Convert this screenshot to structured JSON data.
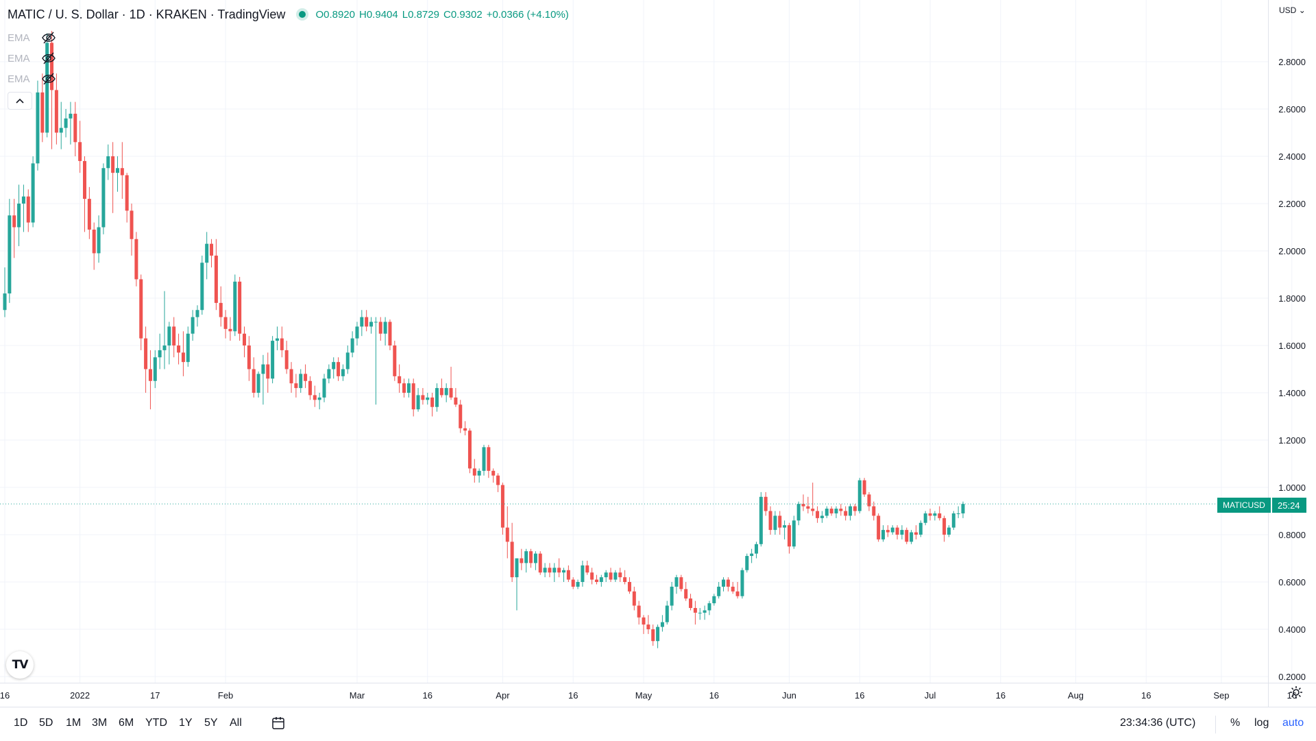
{
  "header": {
    "title": "MATIC / U. S. Dollar · 1D · KRAKEN · TradingView",
    "ohlc": {
      "o_label": "O",
      "o": "0.8920",
      "h_label": "H",
      "h": "0.9404",
      "l_label": "L",
      "l": "0.8729",
      "c_label": "C",
      "c": "0.9302",
      "change": "+0.0366 (+4.10%)"
    }
  },
  "indicators": [
    {
      "label": "EMA",
      "icon": "eye-crossed-icon"
    },
    {
      "label": "EMA",
      "icon": "eye-crossed-icon"
    },
    {
      "label": "EMA",
      "icon": "eye-crossed-icon"
    }
  ],
  "collapse_icon": "chevron-up-icon",
  "logo_text": "TV",
  "price_axis": {
    "currency": "USD",
    "ticks": [
      "2.8000",
      "2.6000",
      "2.4000",
      "2.2000",
      "2.0000",
      "1.8000",
      "1.6000",
      "1.4000",
      "1.2000",
      "1.0000",
      "0.8000",
      "0.6000",
      "0.4000",
      "0.2000"
    ]
  },
  "last_price_label": {
    "symbol": "MATICUSD",
    "countdown": "25:24"
  },
  "time_axis": {
    "labels": [
      "16",
      "2022",
      "17",
      "Feb",
      "Mar",
      "16",
      "Apr",
      "16",
      "May",
      "16",
      "Jun",
      "16",
      "Jul",
      "16",
      "Aug",
      "16",
      "Sep",
      "16"
    ]
  },
  "toolbar": {
    "timeframes": [
      "1D",
      "5D",
      "1M",
      "3M",
      "6M",
      "YTD",
      "1Y",
      "5Y",
      "All"
    ],
    "clock": "23:34:36 (UTC)",
    "percent": "%",
    "log": "log",
    "auto": "auto"
  },
  "colors": {
    "up": "#26a69a",
    "down": "#ef5350",
    "grid": "#f0f3fa",
    "axis_text": "#131722"
  },
  "chart_data": {
    "type": "candlestick",
    "title": "MATIC / U. S. Dollar · 1D · KRAKEN",
    "ylim": [
      0.2,
      2.95
    ],
    "first_date": "2021-12-16",
    "last_date": "2022-09-12",
    "grid": true,
    "candles": [
      [
        1.75,
        1.93,
        1.72,
        1.82
      ],
      [
        1.82,
        2.22,
        1.78,
        2.15
      ],
      [
        2.15,
        2.22,
        1.97,
        2.1
      ],
      [
        2.1,
        2.28,
        2.02,
        2.2
      ],
      [
        2.2,
        2.28,
        2.08,
        2.23
      ],
      [
        2.23,
        2.26,
        2.08,
        2.12
      ],
      [
        2.12,
        2.4,
        2.1,
        2.37
      ],
      [
        2.37,
        2.72,
        2.34,
        2.67
      ],
      [
        2.67,
        2.75,
        2.46,
        2.5
      ],
      [
        2.5,
        2.92,
        2.48,
        2.88
      ],
      [
        2.88,
        2.93,
        2.43,
        2.68
      ],
      [
        2.68,
        2.75,
        2.45,
        2.5
      ],
      [
        2.5,
        2.63,
        2.43,
        2.52
      ],
      [
        2.52,
        2.6,
        2.48,
        2.56
      ],
      [
        2.56,
        2.63,
        2.45,
        2.58
      ],
      [
        2.58,
        2.63,
        2.4,
        2.46
      ],
      [
        2.46,
        2.55,
        2.33,
        2.38
      ],
      [
        2.38,
        2.4,
        2.08,
        2.22
      ],
      [
        2.22,
        2.27,
        2.05,
        2.09
      ],
      [
        2.09,
        2.12,
        1.92,
        1.99
      ],
      [
        1.99,
        2.15,
        1.95,
        2.1
      ],
      [
        2.1,
        2.37,
        2.07,
        2.35
      ],
      [
        2.35,
        2.45,
        2.3,
        2.4
      ],
      [
        2.4,
        2.46,
        2.16,
        2.33
      ],
      [
        2.33,
        2.4,
        2.25,
        2.35
      ],
      [
        2.35,
        2.46,
        2.22,
        2.32
      ],
      [
        2.32,
        2.33,
        2.12,
        2.17
      ],
      [
        2.17,
        2.2,
        1.98,
        2.05
      ],
      [
        2.05,
        2.08,
        1.85,
        1.88
      ],
      [
        1.88,
        1.9,
        1.58,
        1.63
      ],
      [
        1.63,
        1.68,
        1.4,
        1.5
      ],
      [
        1.5,
        1.58,
        1.33,
        1.45
      ],
      [
        1.45,
        1.58,
        1.42,
        1.55
      ],
      [
        1.55,
        1.65,
        1.5,
        1.58
      ],
      [
        1.58,
        1.83,
        1.5,
        1.6
      ],
      [
        1.6,
        1.7,
        1.52,
        1.68
      ],
      [
        1.68,
        1.72,
        1.55,
        1.6
      ],
      [
        1.6,
        1.65,
        1.52,
        1.57
      ],
      [
        1.57,
        1.66,
        1.47,
        1.53
      ],
      [
        1.53,
        1.68,
        1.51,
        1.65
      ],
      [
        1.65,
        1.75,
        1.62,
        1.72
      ],
      [
        1.72,
        1.77,
        1.68,
        1.75
      ],
      [
        1.75,
        1.98,
        1.73,
        1.95
      ],
      [
        1.95,
        2.08,
        1.88,
        2.03
      ],
      [
        2.03,
        2.05,
        1.93,
        1.98
      ],
      [
        1.98,
        2.05,
        1.75,
        1.78
      ],
      [
        1.78,
        1.85,
        1.68,
        1.72
      ],
      [
        1.72,
        1.75,
        1.63,
        1.67
      ],
      [
        1.67,
        1.72,
        1.62,
        1.66
      ],
      [
        1.66,
        1.9,
        1.64,
        1.87
      ],
      [
        1.87,
        1.89,
        1.62,
        1.65
      ],
      [
        1.65,
        1.68,
        1.55,
        1.6
      ],
      [
        1.6,
        1.64,
        1.45,
        1.5
      ],
      [
        1.5,
        1.55,
        1.38,
        1.4
      ],
      [
        1.4,
        1.49,
        1.38,
        1.48
      ],
      [
        1.48,
        1.56,
        1.35,
        1.52
      ],
      [
        1.52,
        1.57,
        1.4,
        1.46
      ],
      [
        1.46,
        1.64,
        1.44,
        1.62
      ],
      [
        1.62,
        1.68,
        1.58,
        1.63
      ],
      [
        1.63,
        1.68,
        1.55,
        1.58
      ],
      [
        1.58,
        1.62,
        1.48,
        1.5
      ],
      [
        1.5,
        1.53,
        1.4,
        1.44
      ],
      [
        1.44,
        1.48,
        1.38,
        1.42
      ],
      [
        1.42,
        1.5,
        1.4,
        1.48
      ],
      [
        1.48,
        1.52,
        1.42,
        1.45
      ],
      [
        1.45,
        1.47,
        1.37,
        1.39
      ],
      [
        1.39,
        1.43,
        1.34,
        1.37
      ],
      [
        1.37,
        1.4,
        1.33,
        1.38
      ],
      [
        1.38,
        1.48,
        1.36,
        1.46
      ],
      [
        1.46,
        1.52,
        1.44,
        1.5
      ],
      [
        1.5,
        1.55,
        1.46,
        1.53
      ],
      [
        1.53,
        1.55,
        1.45,
        1.47
      ],
      [
        1.47,
        1.52,
        1.45,
        1.5
      ],
      [
        1.5,
        1.6,
        1.48,
        1.57
      ],
      [
        1.57,
        1.66,
        1.55,
        1.63
      ],
      [
        1.63,
        1.7,
        1.6,
        1.68
      ],
      [
        1.68,
        1.75,
        1.64,
        1.72
      ],
      [
        1.72,
        1.75,
        1.66,
        1.68
      ],
      [
        1.68,
        1.72,
        1.65,
        1.7
      ],
      [
        1.7,
        1.72,
        1.35,
        1.7
      ],
      [
        1.7,
        1.72,
        1.62,
        1.65
      ],
      [
        1.65,
        1.72,
        1.6,
        1.7
      ],
      [
        1.7,
        1.71,
        1.58,
        1.6
      ],
      [
        1.6,
        1.62,
        1.45,
        1.47
      ],
      [
        1.47,
        1.52,
        1.4,
        1.44
      ],
      [
        1.44,
        1.46,
        1.38,
        1.4
      ],
      [
        1.4,
        1.46,
        1.38,
        1.44
      ],
      [
        1.44,
        1.46,
        1.3,
        1.33
      ],
      [
        1.33,
        1.42,
        1.32,
        1.39
      ],
      [
        1.39,
        1.42,
        1.35,
        1.37
      ],
      [
        1.37,
        1.4,
        1.35,
        1.38
      ],
      [
        1.38,
        1.4,
        1.3,
        1.34
      ],
      [
        1.34,
        1.44,
        1.32,
        1.42
      ],
      [
        1.42,
        1.46,
        1.38,
        1.39
      ],
      [
        1.39,
        1.44,
        1.36,
        1.42
      ],
      [
        1.42,
        1.51,
        1.37,
        1.38
      ],
      [
        1.38,
        1.42,
        1.34,
        1.35
      ],
      [
        1.35,
        1.37,
        1.23,
        1.25
      ],
      [
        1.25,
        1.28,
        1.22,
        1.24
      ],
      [
        1.24,
        1.25,
        1.06,
        1.08
      ],
      [
        1.08,
        1.12,
        1.02,
        1.05
      ],
      [
        1.05,
        1.08,
        1.02,
        1.07
      ],
      [
        1.07,
        1.18,
        1.05,
        1.17
      ],
      [
        1.17,
        1.18,
        1.04,
        1.07
      ],
      [
        1.07,
        1.08,
        1.02,
        1.05
      ],
      [
        1.05,
        1.06,
        0.98,
        1.01
      ],
      [
        1.01,
        1.02,
        0.8,
        0.83
      ],
      [
        0.83,
        0.92,
        0.7,
        0.77
      ],
      [
        0.77,
        0.85,
        0.6,
        0.62
      ],
      [
        0.62,
        0.68,
        0.48,
        0.7
      ],
      [
        0.7,
        0.74,
        0.65,
        0.68
      ],
      [
        0.68,
        0.74,
        0.64,
        0.73
      ],
      [
        0.73,
        0.74,
        0.66,
        0.68
      ],
      [
        0.68,
        0.73,
        0.65,
        0.72
      ],
      [
        0.72,
        0.73,
        0.63,
        0.64
      ],
      [
        0.64,
        0.68,
        0.62,
        0.66
      ],
      [
        0.66,
        0.68,
        0.62,
        0.64
      ],
      [
        0.64,
        0.68,
        0.6,
        0.66
      ],
      [
        0.66,
        0.7,
        0.62,
        0.64
      ],
      [
        0.64,
        0.66,
        0.6,
        0.65
      ],
      [
        0.65,
        0.67,
        0.6,
        0.61
      ],
      [
        0.61,
        0.62,
        0.57,
        0.58
      ],
      [
        0.58,
        0.61,
        0.57,
        0.6
      ],
      [
        0.6,
        0.69,
        0.58,
        0.67
      ],
      [
        0.67,
        0.69,
        0.63,
        0.64
      ],
      [
        0.64,
        0.66,
        0.59,
        0.61
      ],
      [
        0.61,
        0.63,
        0.59,
        0.6
      ],
      [
        0.6,
        0.63,
        0.58,
        0.62
      ],
      [
        0.62,
        0.65,
        0.6,
        0.64
      ],
      [
        0.64,
        0.66,
        0.6,
        0.61
      ],
      [
        0.61,
        0.65,
        0.6,
        0.64
      ],
      [
        0.64,
        0.66,
        0.6,
        0.62
      ],
      [
        0.62,
        0.65,
        0.59,
        0.6
      ],
      [
        0.6,
        0.62,
        0.55,
        0.56
      ],
      [
        0.56,
        0.58,
        0.48,
        0.5
      ],
      [
        0.5,
        0.52,
        0.42,
        0.45
      ],
      [
        0.45,
        0.46,
        0.38,
        0.42
      ],
      [
        0.42,
        0.46,
        0.38,
        0.4
      ],
      [
        0.4,
        0.42,
        0.33,
        0.35
      ],
      [
        0.35,
        0.42,
        0.32,
        0.41
      ],
      [
        0.41,
        0.46,
        0.39,
        0.43
      ],
      [
        0.43,
        0.52,
        0.42,
        0.5
      ],
      [
        0.5,
        0.6,
        0.48,
        0.58
      ],
      [
        0.58,
        0.63,
        0.55,
        0.62
      ],
      [
        0.62,
        0.63,
        0.56,
        0.57
      ],
      [
        0.57,
        0.6,
        0.52,
        0.53
      ],
      [
        0.53,
        0.55,
        0.48,
        0.49
      ],
      [
        0.49,
        0.52,
        0.42,
        0.47
      ],
      [
        0.47,
        0.49,
        0.44,
        0.47
      ],
      [
        0.47,
        0.5,
        0.44,
        0.48
      ],
      [
        0.48,
        0.52,
        0.46,
        0.51
      ],
      [
        0.51,
        0.55,
        0.5,
        0.54
      ],
      [
        0.54,
        0.6,
        0.53,
        0.58
      ],
      [
        0.58,
        0.62,
        0.56,
        0.61
      ],
      [
        0.61,
        0.62,
        0.56,
        0.58
      ],
      [
        0.58,
        0.6,
        0.55,
        0.56
      ],
      [
        0.56,
        0.6,
        0.53,
        0.54
      ],
      [
        0.54,
        0.66,
        0.53,
        0.65
      ],
      [
        0.65,
        0.72,
        0.64,
        0.71
      ],
      [
        0.71,
        0.74,
        0.68,
        0.72
      ],
      [
        0.72,
        0.77,
        0.7,
        0.76
      ],
      [
        0.76,
        0.98,
        0.75,
        0.96
      ],
      [
        0.96,
        0.98,
        0.88,
        0.9
      ],
      [
        0.9,
        0.92,
        0.8,
        0.82
      ],
      [
        0.82,
        0.9,
        0.8,
        0.88
      ],
      [
        0.88,
        0.9,
        0.8,
        0.83
      ],
      [
        0.83,
        0.86,
        0.78,
        0.84
      ],
      [
        0.84,
        0.85,
        0.72,
        0.75
      ],
      [
        0.75,
        0.88,
        0.74,
        0.86
      ],
      [
        0.86,
        0.94,
        0.84,
        0.93
      ],
      [
        0.93,
        0.97,
        0.9,
        0.92
      ],
      [
        0.92,
        0.96,
        0.89,
        0.91
      ],
      [
        0.91,
        1.02,
        0.88,
        0.9
      ],
      [
        0.9,
        0.92,
        0.85,
        0.87
      ],
      [
        0.87,
        0.9,
        0.85,
        0.88
      ],
      [
        0.88,
        0.92,
        0.87,
        0.91
      ],
      [
        0.91,
        0.92,
        0.88,
        0.89
      ],
      [
        0.89,
        0.92,
        0.87,
        0.91
      ],
      [
        0.91,
        0.93,
        0.88,
        0.9
      ],
      [
        0.9,
        0.92,
        0.86,
        0.88
      ],
      [
        0.88,
        0.93,
        0.86,
        0.92
      ],
      [
        0.92,
        0.93,
        0.88,
        0.9
      ],
      [
        0.9,
        1.04,
        0.89,
        1.03
      ],
      [
        1.03,
        1.04,
        0.96,
        0.97
      ],
      [
        0.97,
        0.98,
        0.9,
        0.92
      ],
      [
        0.92,
        0.94,
        0.86,
        0.88
      ],
      [
        0.88,
        0.89,
        0.77,
        0.78
      ],
      [
        0.78,
        0.84,
        0.77,
        0.82
      ],
      [
        0.82,
        0.84,
        0.79,
        0.81
      ],
      [
        0.81,
        0.84,
        0.8,
        0.83
      ],
      [
        0.83,
        0.84,
        0.78,
        0.8
      ],
      [
        0.8,
        0.84,
        0.78,
        0.82
      ],
      [
        0.82,
        0.83,
        0.76,
        0.77
      ],
      [
        0.77,
        0.82,
        0.76,
        0.81
      ],
      [
        0.81,
        0.84,
        0.78,
        0.8
      ],
      [
        0.8,
        0.86,
        0.79,
        0.85
      ],
      [
        0.85,
        0.9,
        0.84,
        0.89
      ],
      [
        0.89,
        0.91,
        0.86,
        0.88
      ],
      [
        0.88,
        0.9,
        0.86,
        0.89
      ],
      [
        0.89,
        0.92,
        0.86,
        0.87
      ],
      [
        0.87,
        0.88,
        0.77,
        0.8
      ],
      [
        0.8,
        0.84,
        0.79,
        0.83
      ],
      [
        0.83,
        0.9,
        0.82,
        0.89
      ],
      [
        0.89,
        0.92,
        0.87,
        0.89
      ],
      [
        0.89,
        0.94,
        0.87,
        0.93
      ]
    ]
  }
}
